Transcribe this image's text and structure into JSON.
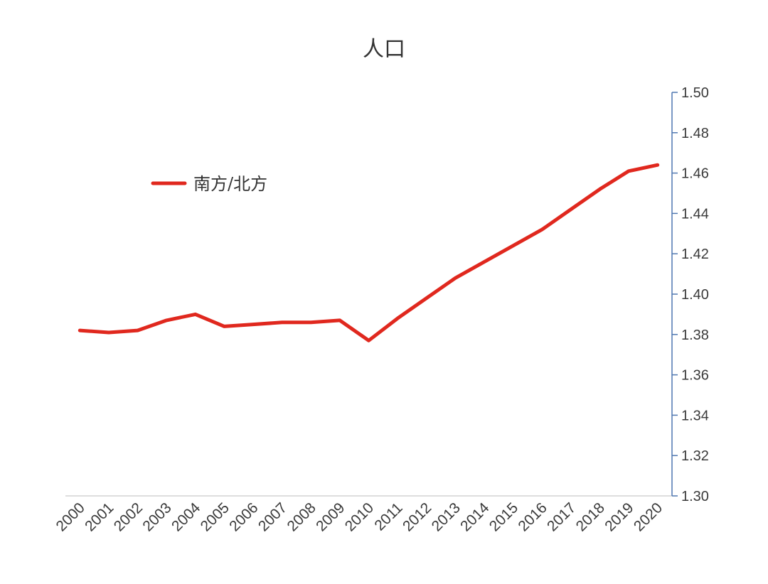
{
  "chart_data": {
    "type": "line",
    "title": "人口",
    "xlabel": "",
    "ylabel": "",
    "categories": [
      "2000",
      "2001",
      "2002",
      "2003",
      "2004",
      "2005",
      "2006",
      "2007",
      "2008",
      "2009",
      "2010",
      "2011",
      "2012",
      "2013",
      "2014",
      "2015",
      "2016",
      "2017",
      "2018",
      "2019",
      "2020"
    ],
    "series": [
      {
        "name": "南方/北方",
        "color": "#e0281e",
        "values": [
          1.382,
          1.381,
          1.382,
          1.387,
          1.39,
          1.384,
          1.385,
          1.386,
          1.386,
          1.387,
          1.377,
          1.388,
          1.398,
          1.408,
          1.416,
          1.424,
          1.432,
          1.442,
          1.452,
          1.461,
          1.464
        ]
      }
    ],
    "y_axis": {
      "position": "right",
      "ylim": [
        1.3,
        1.5
      ],
      "tick_labels": [
        "1.30",
        "1.32",
        "1.34",
        "1.36",
        "1.38",
        "1.40",
        "1.42",
        "1.44",
        "1.46",
        "1.48",
        "1.50"
      ],
      "color": "#4f77b0"
    },
    "x_axis": {
      "color": "#d3d3d3"
    },
    "legend": {
      "placement": "upper-left"
    },
    "grid": false
  }
}
